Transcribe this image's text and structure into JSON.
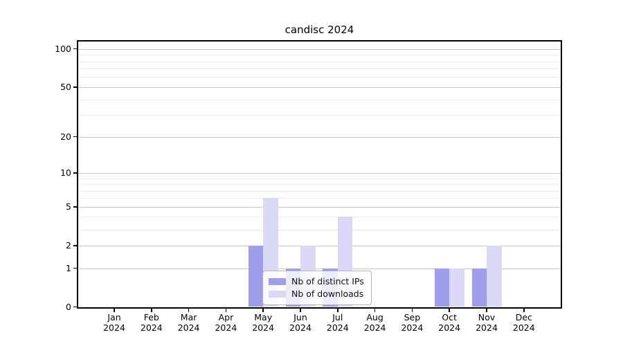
{
  "chart_data": {
    "type": "bar",
    "title": "candisc 2024",
    "x_months": [
      "Jan",
      "Feb",
      "Mar",
      "Apr",
      "May",
      "Jun",
      "Jul",
      "Aug",
      "Sep",
      "Oct",
      "Nov",
      "Dec"
    ],
    "x_year": "2024",
    "categories": [
      "Jan 2024",
      "Feb 2024",
      "Mar 2024",
      "Apr 2024",
      "May 2024",
      "Jun 2024",
      "Jul 2024",
      "Aug 2024",
      "Sep 2024",
      "Oct 2024",
      "Nov 2024",
      "Dec 2024"
    ],
    "series": [
      {
        "name": "Nb of distinct IPs",
        "color": "#9e9eeb",
        "values": [
          0,
          0,
          0,
          0,
          2,
          1,
          1,
          0,
          0,
          1,
          1,
          0
        ]
      },
      {
        "name": "Nb of downloads",
        "color": "#d9d9f6",
        "values": [
          0,
          0,
          0,
          0,
          6,
          2,
          4,
          0,
          0,
          1,
          2,
          0
        ]
      }
    ],
    "yscale": "log1p",
    "ylim": [
      0,
      115
    ],
    "yticks_major": [
      0,
      1,
      2,
      5,
      10,
      20,
      50,
      100
    ],
    "yticks_minor": [
      3,
      4,
      6,
      7,
      8,
      9,
      30,
      40,
      60,
      70,
      80,
      90
    ],
    "grid": true,
    "legend_position": "lower center"
  },
  "colors": {
    "grid_major": "#c6c6c6",
    "grid_minor": "#ececec",
    "spine": "#000000",
    "legend_border": "#b3b3b3"
  }
}
